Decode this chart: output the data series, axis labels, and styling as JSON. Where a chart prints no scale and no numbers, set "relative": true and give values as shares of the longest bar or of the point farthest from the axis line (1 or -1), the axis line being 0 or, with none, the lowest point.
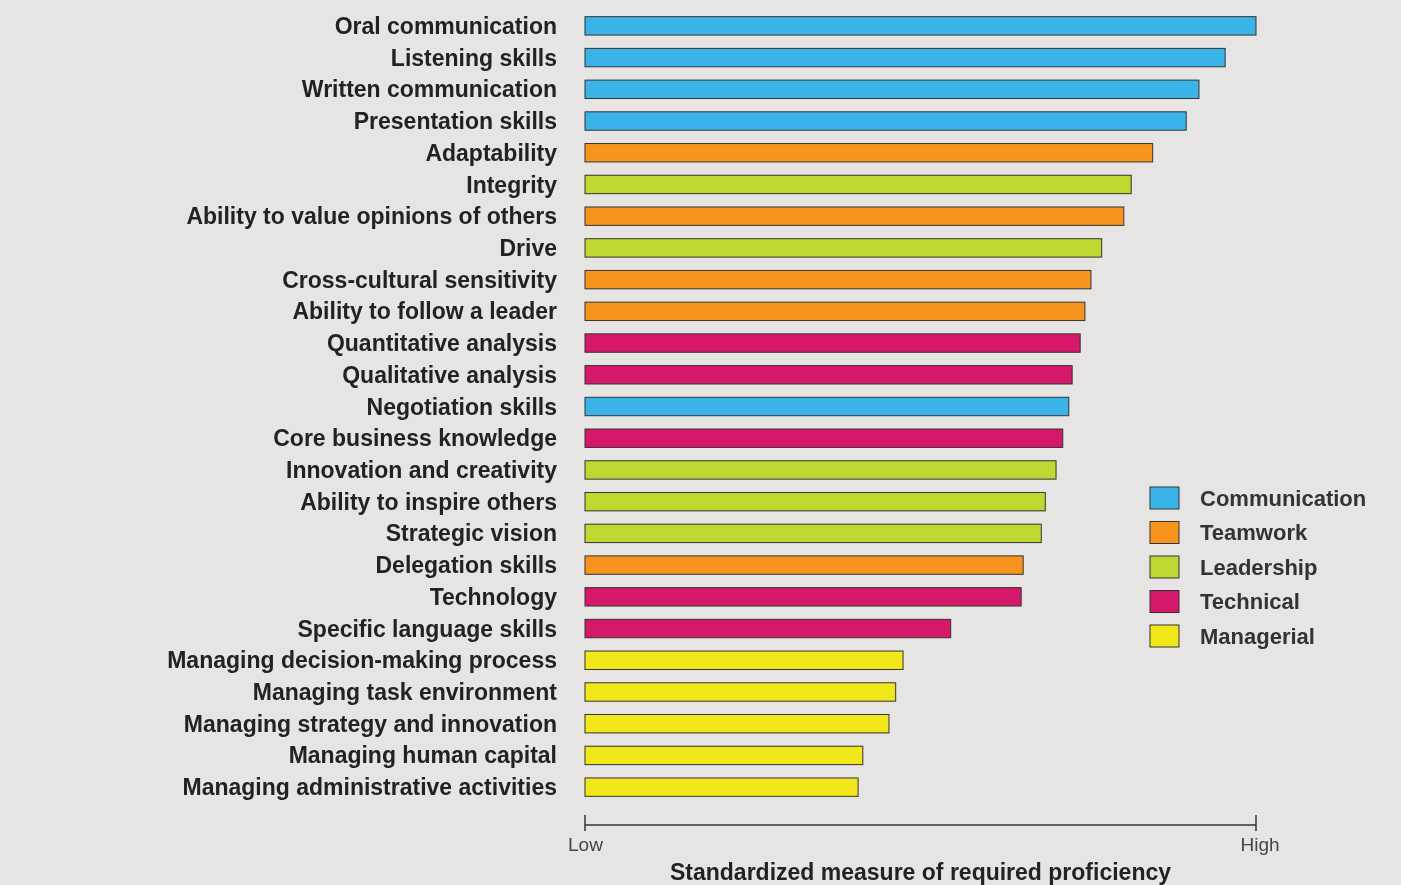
{
  "chart_data": {
    "type": "bar",
    "orientation": "horizontal",
    "relative": true,
    "xlabel": "Standardized measure of required proficiency",
    "annotations": [
      "Low",
      "High"
    ],
    "categories": [
      "Oral communication",
      "Listening skills",
      "Written communication",
      "Presentation skills",
      "Adaptability",
      "Integrity",
      "Ability to value opinions of others",
      "Drive",
      "Cross-cultural sensitivity",
      "Ability to follow a leader",
      "Quantitative analysis",
      "Qualitative analysis",
      "Negotiation skills",
      "Core business knowledge",
      "Innovation and creativity",
      "Ability to inspire others",
      "Strategic vision",
      "Delegation skills",
      "Technology",
      "Specific language skills",
      "Managing decision-making process",
      "Managing task environment",
      "Managing strategy and innovation",
      "Managing human capital",
      "Managing administrative activities"
    ],
    "series": [
      {
        "name": "Communication",
        "color": "#3ab4e8",
        "values": [
          1.0,
          0.954,
          0.915,
          0.896,
          null,
          null,
          null,
          null,
          null,
          null,
          null,
          null,
          0.721,
          null,
          null,
          null,
          null,
          null,
          null,
          null,
          null,
          null,
          null,
          null,
          null
        ]
      },
      {
        "name": "Teamwork",
        "color": "#f7941d",
        "values": [
          null,
          null,
          null,
          null,
          0.846,
          null,
          0.803,
          null,
          0.754,
          0.745,
          null,
          null,
          null,
          null,
          null,
          null,
          null,
          0.653,
          null,
          null,
          null,
          null,
          null,
          null,
          null
        ]
      },
      {
        "name": "Leadership",
        "color": "#bfd730",
        "values": [
          null,
          null,
          null,
          null,
          null,
          0.814,
          null,
          0.77,
          null,
          null,
          null,
          null,
          null,
          null,
          0.702,
          0.686,
          0.68,
          null,
          null,
          null,
          null,
          null,
          null,
          null,
          null
        ]
      },
      {
        "name": "Technical",
        "color": "#d6186b",
        "values": [
          null,
          null,
          null,
          null,
          null,
          null,
          null,
          null,
          null,
          null,
          0.738,
          0.726,
          null,
          0.712,
          null,
          null,
          null,
          null,
          0.65,
          0.545,
          null,
          null,
          null,
          null,
          null
        ]
      },
      {
        "name": "Managerial",
        "color": "#f2e71a",
        "values": [
          null,
          null,
          null,
          null,
          null,
          null,
          null,
          null,
          null,
          null,
          null,
          null,
          null,
          null,
          null,
          null,
          null,
          null,
          null,
          null,
          0.474,
          0.463,
          0.453,
          0.414,
          0.407
        ]
      }
    ],
    "legend": "right"
  }
}
